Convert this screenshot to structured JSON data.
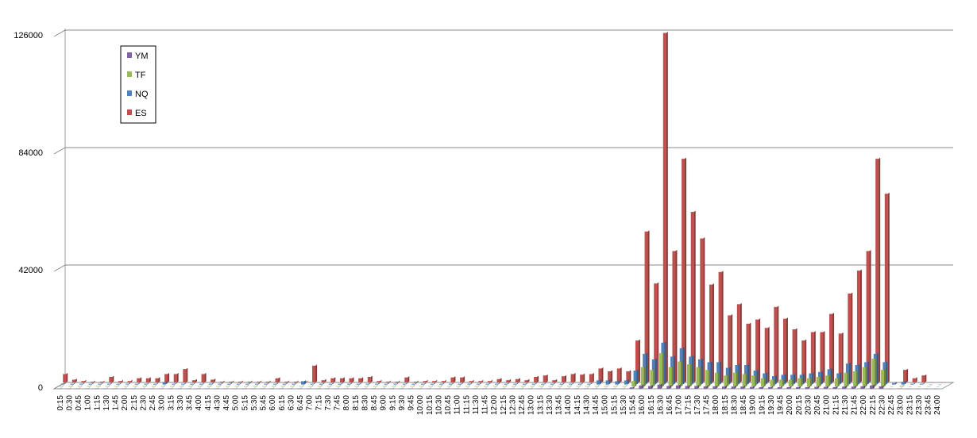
{
  "chart_data": {
    "type": "bar3d",
    "categories": [
      "0:15",
      "0:30",
      "0:45",
      "1:00",
      "1:15",
      "1:30",
      "1:45",
      "2:00",
      "2:15",
      "2:30",
      "2:45",
      "3:00",
      "3:15",
      "3:30",
      "3:45",
      "4:00",
      "4:15",
      "4:30",
      "4:45",
      "5:00",
      "5:15",
      "5:30",
      "5:45",
      "6:00",
      "6:15",
      "6:30",
      "6:45",
      "7:00",
      "7:15",
      "7:30",
      "7:45",
      "8:00",
      "8:15",
      "8:30",
      "8:45",
      "9:00",
      "9:15",
      "9:30",
      "9:45",
      "10:00",
      "10:15",
      "10:30",
      "10:45",
      "11:00",
      "11:15",
      "11:30",
      "11:45",
      "12:00",
      "12:15",
      "12:30",
      "12:45",
      "13:00",
      "13:15",
      "13:30",
      "13:45",
      "14:00",
      "14:15",
      "14:30",
      "14:45",
      "15:00",
      "15:15",
      "15:30",
      "15:45",
      "16:00",
      "16:15",
      "16:30",
      "16:45",
      "17:00",
      "17:15",
      "17:30",
      "17:45",
      "18:00",
      "18:15",
      "18:30",
      "18:45",
      "19:00",
      "19:15",
      "19:30",
      "19:45",
      "20:00",
      "20:15",
      "20:30",
      "20:45",
      "21:00",
      "21:15",
      "21:30",
      "21:45",
      "22:00",
      "22:15",
      "22:30",
      "22:45",
      "23:00",
      "23:15",
      "23:30",
      "23:45",
      "24:00"
    ],
    "series": [
      {
        "name": "YM",
        "color": "#8064a2",
        "values": [
          100,
          100,
          100,
          100,
          100,
          100,
          100,
          100,
          100,
          100,
          100,
          100,
          100,
          100,
          100,
          100,
          100,
          100,
          100,
          100,
          100,
          100,
          100,
          100,
          100,
          100,
          100,
          100,
          100,
          100,
          100,
          100,
          100,
          100,
          100,
          100,
          100,
          100,
          100,
          100,
          100,
          100,
          100,
          100,
          100,
          100,
          100,
          100,
          100,
          100,
          100,
          100,
          100,
          100,
          100,
          100,
          100,
          100,
          100,
          100,
          100,
          100,
          500,
          1200,
          1000,
          1500,
          1000,
          1200,
          1000,
          1000,
          900,
          900,
          800,
          800,
          800,
          700,
          600,
          600,
          600,
          600,
          600,
          600,
          700,
          700,
          600,
          800,
          800,
          900,
          1200,
          900,
          0,
          100,
          0,
          0,
          0,
          0
        ]
      },
      {
        "name": "TF",
        "color": "#9bbb59",
        "values": [
          200,
          200,
          200,
          200,
          200,
          200,
          200,
          200,
          200,
          200,
          200,
          200,
          200,
          200,
          200,
          200,
          200,
          200,
          200,
          200,
          200,
          200,
          200,
          200,
          200,
          200,
          200,
          200,
          200,
          200,
          200,
          200,
          200,
          200,
          200,
          200,
          200,
          200,
          200,
          200,
          200,
          200,
          200,
          200,
          200,
          200,
          200,
          200,
          200,
          200,
          200,
          200,
          200,
          200,
          200,
          200,
          200,
          200,
          200,
          200,
          200,
          200,
          2000,
          7000,
          6000,
          12000,
          7000,
          9000,
          8000,
          7000,
          6000,
          5000,
          4000,
          5000,
          4500,
          4000,
          3000,
          2500,
          2500,
          2500,
          3000,
          3000,
          3500,
          4000,
          3000,
          5000,
          5500,
          7000,
          10000,
          6000,
          0,
          300,
          0,
          0,
          0,
          0
        ]
      },
      {
        "name": "NQ",
        "color": "#4f81bd",
        "values": [
          300,
          300,
          300,
          300,
          300,
          300,
          300,
          300,
          300,
          300,
          300,
          800,
          300,
          300,
          300,
          300,
          300,
          300,
          300,
          300,
          300,
          300,
          300,
          300,
          300,
          300,
          1200,
          300,
          300,
          300,
          300,
          300,
          300,
          300,
          300,
          300,
          300,
          300,
          300,
          300,
          300,
          300,
          300,
          300,
          300,
          300,
          300,
          300,
          300,
          300,
          300,
          300,
          300,
          300,
          300,
          300,
          300,
          300,
          1500,
          1500,
          1200,
          1500,
          5000,
          11000,
          9000,
          15000,
          10000,
          13000,
          10000,
          9000,
          8000,
          8000,
          6000,
          7000,
          7000,
          5000,
          4000,
          3000,
          3500,
          3500,
          3500,
          4000,
          4500,
          5500,
          4000,
          7500,
          7000,
          8000,
          11000,
          8000,
          500,
          1000,
          300,
          300,
          0,
          0
        ]
      },
      {
        "name": "ES",
        "color": "#c0504d",
        "values": [
          3000,
          1000,
          500,
          300,
          300,
          2000,
          500,
          500,
          1500,
          1500,
          1500,
          3000,
          3000,
          4800,
          800,
          3000,
          1000,
          300,
          300,
          300,
          300,
          300,
          300,
          1500,
          300,
          300,
          300,
          6000,
          800,
          1500,
          1500,
          1500,
          1500,
          2000,
          500,
          300,
          300,
          1800,
          300,
          500,
          500,
          500,
          1800,
          1800,
          500,
          500,
          500,
          1200,
          800,
          1200,
          800,
          2000,
          2500,
          800,
          2200,
          3000,
          2800,
          3000,
          5000,
          4000,
          5000,
          4000,
          15000,
          54000,
          35400,
          125000,
          47000,
          80000,
          61000,
          51500,
          35000,
          39500,
          24000,
          28000,
          21000,
          22500,
          19500,
          27000,
          22800,
          19000,
          15000,
          18000,
          18000,
          24500,
          17500,
          31800,
          40000,
          47000,
          80000,
          67500,
          0,
          4500,
          1500,
          2500,
          0,
          0
        ]
      }
    ],
    "ylim": [
      0,
      126000
    ],
    "yticks": [
      0,
      42000,
      84000,
      126000
    ],
    "grid": true,
    "legend": "top-left"
  }
}
